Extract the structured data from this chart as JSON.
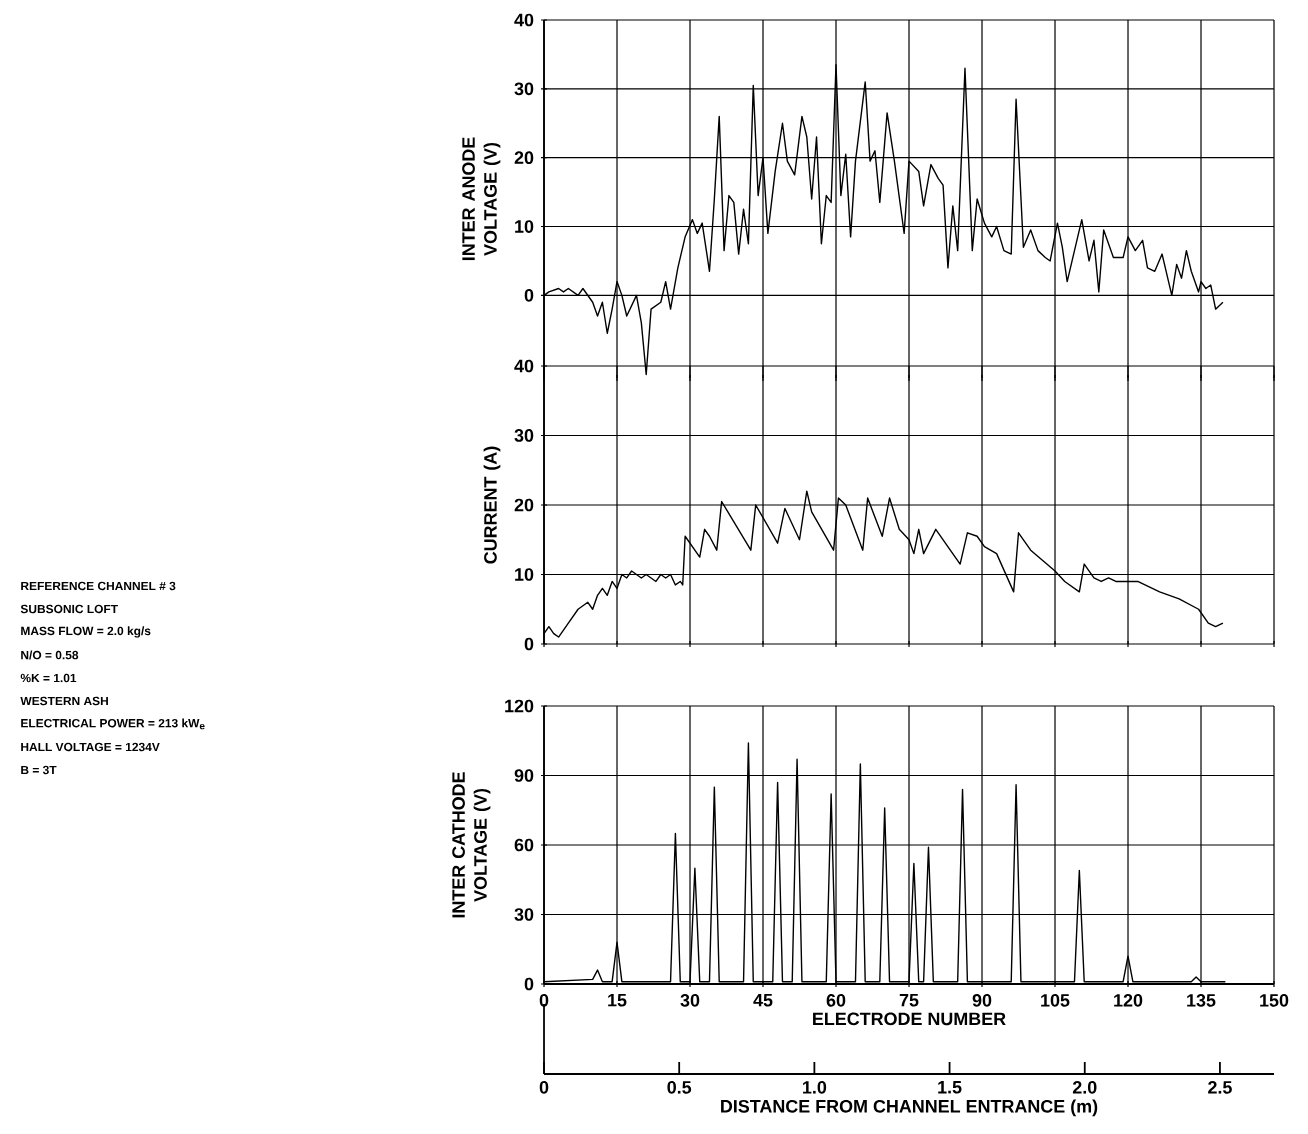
{
  "chart_data": [
    {
      "type": "line",
      "ylabel": "INTER ANODE VOLTAGE (V)",
      "xlim": [
        0,
        150
      ],
      "xticks": [
        0,
        15,
        30,
        45,
        60,
        75,
        90,
        105,
        120,
        135,
        150
      ],
      "ylim": [
        -12,
        40
      ],
      "yticks": [
        0,
        10,
        20,
        30,
        40
      ],
      "grid": true,
      "tick_labels": "y",
      "series": [
        {
          "color": "#000000",
          "x": [
            0,
            1,
            3,
            4,
            5,
            7,
            8,
            10,
            11,
            12,
            13,
            14,
            15,
            16,
            17,
            19,
            20,
            21,
            22,
            24,
            25,
            26,
            27.5,
            29,
            30.5,
            31.5,
            32.5,
            34,
            35,
            36,
            37,
            38,
            39,
            40,
            41,
            42,
            43,
            44,
            45,
            46,
            47.5,
            49,
            50,
            51.5,
            53,
            54,
            55,
            56,
            57,
            58,
            59,
            60,
            61,
            62,
            63,
            64,
            66,
            67,
            68,
            69,
            70.5,
            72,
            74,
            75,
            77,
            78,
            79.5,
            81,
            82,
            83,
            84,
            85,
            86.5,
            88,
            89,
            90.5,
            92,
            93,
            94.5,
            96,
            97,
            98.5,
            100,
            101.5,
            103,
            104,
            105.5,
            106.5,
            107.5,
            109,
            110.5,
            112,
            113,
            114,
            115,
            117,
            119,
            120,
            121.5,
            123,
            124,
            125.5,
            127,
            128.5,
            129,
            130,
            131,
            132,
            133,
            134.5,
            135,
            136,
            137,
            138,
            139.5
          ],
          "values": [
            0,
            0.5,
            1,
            0.5,
            1,
            0,
            1,
            -1,
            -3,
            -1,
            -5.5,
            -2,
            2,
            0,
            -3,
            0,
            -4,
            -11.5,
            -2,
            -1,
            2,
            -2,
            4,
            8.5,
            11,
            9,
            10.5,
            3.5,
            14,
            26,
            6.5,
            14.5,
            13.5,
            6,
            12.5,
            7.5,
            30.5,
            14.5,
            20,
            9,
            18,
            25,
            19.5,
            17.5,
            26,
            23,
            14,
            23,
            7.5,
            14.5,
            13.5,
            33.5,
            14.5,
            20.5,
            8.5,
            19.5,
            31,
            19.5,
            21,
            13.5,
            26.5,
            19.5,
            9,
            19.5,
            18,
            13,
            19,
            17,
            16,
            4,
            13,
            6.5,
            33,
            6.5,
            14,
            10.5,
            8.5,
            10,
            6.5,
            6,
            28.5,
            7,
            9.5,
            6.5,
            5.5,
            5,
            10.5,
            7,
            2,
            6.5,
            11,
            5,
            8,
            0.5,
            9.5,
            5.5,
            5.5,
            8.5,
            6.5,
            8,
            4,
            3.5,
            6,
            1.5,
            0,
            4.5,
            2.5,
            6.5,
            3.5,
            0.5,
            2,
            1,
            1.5,
            -2,
            -1
          ]
        }
      ]
    },
    {
      "type": "line",
      "ylabel": "CURRENT (A)",
      "xlim": [
        0,
        150
      ],
      "xticks": [
        0,
        15,
        30,
        45,
        60,
        75,
        90,
        105,
        120,
        135,
        150
      ],
      "ylim": [
        0,
        40
      ],
      "yticks": [
        0,
        10,
        20,
        30,
        40
      ],
      "grid": true,
      "tick_labels": "y",
      "series": [
        {
          "color": "#000000",
          "x": [
            0,
            1,
            2,
            3,
            5,
            7,
            9,
            10,
            11,
            12,
            13,
            14,
            15,
            16,
            17,
            18,
            20,
            21,
            23,
            24,
            25,
            26,
            27,
            28,
            28.5,
            29,
            32,
            33,
            34,
            35.5,
            36.5,
            42.5,
            43.5,
            48,
            49.5,
            52.5,
            54,
            55,
            59.5,
            60.5,
            62,
            65.5,
            66.5,
            69.5,
            71,
            73,
            75,
            76,
            77,
            78,
            80.5,
            85.5,
            87,
            89,
            90.5,
            93,
            96.5,
            97.5,
            100,
            105,
            107,
            110,
            111,
            113,
            114.5,
            116,
            117.5,
            122,
            126.5,
            130.5,
            134.5,
            136.5,
            138,
            139.5
          ],
          "values": [
            1.5,
            2.5,
            1.5,
            1,
            3,
            5,
            6,
            5,
            7,
            8,
            7,
            9,
            8,
            10,
            9.5,
            10.5,
            9.5,
            10,
            9,
            10,
            9.5,
            10,
            8.5,
            9,
            8.5,
            15.5,
            12.5,
            16.5,
            15.5,
            13.5,
            20.5,
            13.5,
            20,
            14.5,
            19.5,
            15,
            22,
            19,
            13.5,
            21,
            20,
            13.5,
            21,
            15.5,
            21,
            16.5,
            15,
            13,
            16.5,
            13,
            16.5,
            11.5,
            16,
            15.5,
            14,
            13,
            7.5,
            16,
            13.5,
            10.5,
            9,
            7.5,
            11.5,
            9.5,
            9,
            9.5,
            9,
            9,
            7.5,
            6.5,
            5,
            3,
            2.5,
            3
          ]
        }
      ]
    },
    {
      "type": "line",
      "ylabel": "INTER CATHODE VOLTAGE (V)",
      "xlabel": "ELECTRODE NUMBER",
      "xlim": [
        0,
        150
      ],
      "xticks": [
        0,
        15,
        30,
        45,
        60,
        75,
        90,
        105,
        120,
        135,
        150
      ],
      "ylim": [
        0,
        120
      ],
      "yticks": [
        0,
        30,
        60,
        90,
        120
      ],
      "grid": true,
      "x2lim": [
        0,
        2.7
      ],
      "x2ticks": [
        0,
        0.5,
        {
          "value": 1,
          "label": "1.0"
        },
        1.5,
        {
          "value": 2,
          "label": "2.0"
        },
        2.5
      ],
      "x2label": "DISTANCE FROM CHANNEL ENTRANCE (m)",
      "series": [
        {
          "color": "#000000",
          "x": [
            0,
            10,
            11,
            12,
            14,
            15,
            16,
            26,
            27,
            28,
            30,
            31,
            32,
            34,
            35,
            36,
            41,
            42,
            43,
            47,
            48,
            49,
            51,
            52,
            53,
            58,
            59,
            60,
            64,
            65,
            66,
            69,
            70,
            71,
            75,
            76,
            77,
            78,
            79,
            80,
            85,
            86,
            87,
            96,
            97,
            98,
            109,
            110,
            111,
            119,
            120,
            121,
            133,
            134,
            135,
            140
          ],
          "values": [
            1,
            2,
            6,
            1,
            1,
            18,
            1,
            1,
            65,
            1,
            1,
            50,
            1,
            1,
            85,
            1,
            1,
            104,
            1,
            1,
            87,
            1,
            1,
            97,
            1,
            1,
            82,
            1,
            1,
            95,
            1,
            1,
            76,
            1,
            1,
            52,
            1,
            1,
            59,
            1,
            1,
            84,
            1,
            1,
            86,
            1,
            1,
            49,
            1,
            1,
            12,
            1,
            1,
            3,
            1,
            1
          ]
        }
      ]
    },
    {
      "type": "other",
      "annotations": [
        "REFERENCE CHANNEL # 3",
        "SUBSONIC LOFT",
        "MASS FLOW = 2.0 kg/s",
        "N/O = 0.58",
        "%K = 1.01",
        "WESTERN ASH",
        "ELECTRICAL POWER = 213 kW$_{e}$",
        "HALL VOLTAGE = 1234V",
        "B = 3T"
      ]
    }
  ]
}
